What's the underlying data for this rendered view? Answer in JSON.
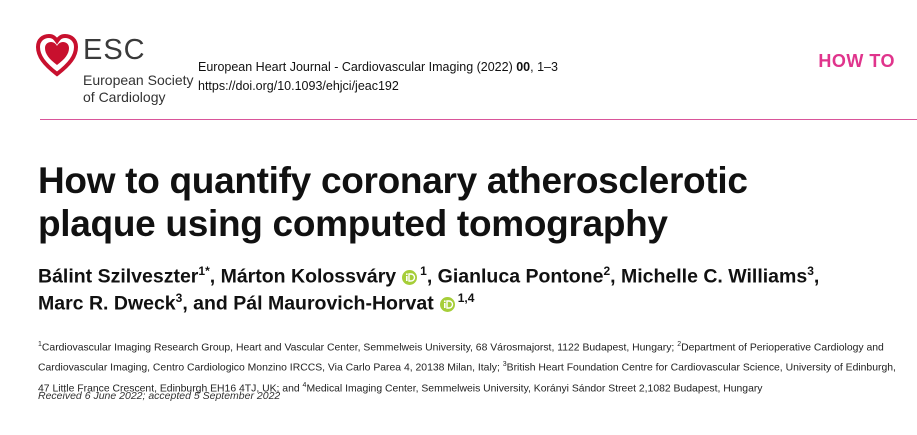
{
  "header": {
    "logo": "ESC",
    "society": [
      "European Society",
      "of Cardiology"
    ],
    "journal": "European Heart Journal - Cardiovascular Imaging (2022) ",
    "volume": "00",
    "pages": ", 1–3",
    "doi": "https://doi.org/10.1093/ehjci/jeac192",
    "section": "HOW TO"
  },
  "title": [
    "How to quantify coronary atherosclerotic",
    "plaque using computed tomography"
  ],
  "authors": [
    [
      {
        "name": "Bálint Szilveszter",
        "sup": "1*",
        "orcid": false,
        "sep": ", "
      },
      {
        "name": "Márton Kolossváry",
        "sup": "1",
        "orcid": true,
        "sep": ", "
      },
      {
        "name": "Gianluca Pontone",
        "sup": "2",
        "orcid": false,
        "sep": ", "
      },
      {
        "name": "Michelle C. Williams",
        "sup": "3",
        "orcid": false,
        "sep": ","
      }
    ],
    [
      {
        "name": "Marc R. Dweck",
        "sup": "3",
        "orcid": false,
        "sep": ", and "
      },
      {
        "name": "Pál Maurovich-Horvat",
        "sup": "1,4",
        "orcid": true,
        "sep": ""
      }
    ]
  ],
  "affiliations": [
    {
      "sup": "1",
      "text": "Cardiovascular Imaging Research Group, Heart and Vascular Center, Semmelweis University, 68 Városmajorst, 1122 Budapest, Hungary; "
    },
    {
      "sup": "2",
      "text": "Department of Perioperative Cardiology and Cardiovascular Imaging, Centro Cardiologico Monzino IRCCS, Via Carlo Parea 4, 20138 Milan, Italy; "
    },
    {
      "sup": "3",
      "text": "British Heart Foundation Centre for Cardiovascular Science, University of Edinburgh, 47 Little France Crescent, Edinburgh EH16 4TJ, UK; and "
    },
    {
      "sup": "4",
      "text": "Medical Imaging Center, Semmelweis University, Korányi Sándor Street 2,1082 Budapest, Hungary"
    }
  ],
  "received": "Received 6 June 2022; accepted 5 September 2022"
}
